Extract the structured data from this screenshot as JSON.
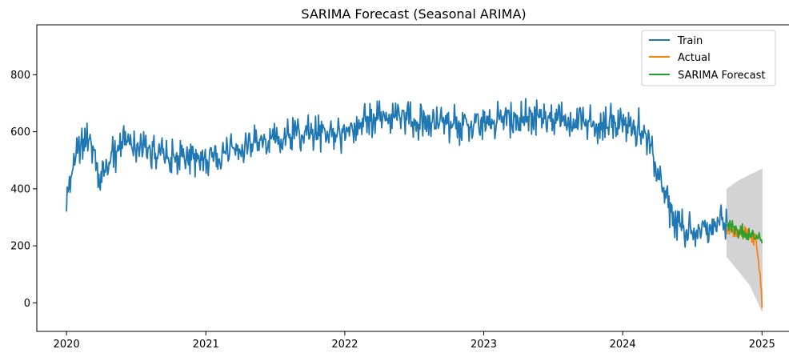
{
  "chart_data": {
    "type": "line",
    "title": "SARIMA Forecast (Seasonal ARIMA)",
    "xlabel": "",
    "ylabel": "",
    "xlim": [
      "2019-10-15",
      "2025-03-15"
    ],
    "ylim": [
      -100,
      975
    ],
    "x_ticks": [
      "2020",
      "2021",
      "2022",
      "2023",
      "2024",
      "2025"
    ],
    "y_ticks": [
      0,
      200,
      400,
      600,
      800
    ],
    "grid": false,
    "legend": {
      "placement": "upper right",
      "entries": [
        "Train",
        "Actual",
        "SARIMA Forecast"
      ]
    },
    "series": [
      {
        "name": "Train",
        "color": "#1f77b4",
        "x": [
          "2020-01-01",
          "2020-02-01",
          "2020-03-01",
          "2020-04-01",
          "2020-05-01",
          "2020-06-01",
          "2020-07-01",
          "2020-08-01",
          "2020-09-01",
          "2020-10-01",
          "2020-11-01",
          "2020-12-01",
          "2021-01-01",
          "2021-02-01",
          "2021-03-01",
          "2021-04-01",
          "2021-05-01",
          "2021-06-01",
          "2021-07-01",
          "2021-08-01",
          "2021-09-01",
          "2021-10-01",
          "2021-11-01",
          "2021-12-01",
          "2022-01-01",
          "2022-02-01",
          "2022-03-01",
          "2022-04-01",
          "2022-05-01",
          "2022-06-01",
          "2022-07-01",
          "2022-08-01",
          "2022-09-01",
          "2022-10-01",
          "2022-11-01",
          "2022-12-01",
          "2023-01-01",
          "2023-02-01",
          "2023-03-01",
          "2023-04-01",
          "2023-05-01",
          "2023-06-01",
          "2023-07-01",
          "2023-08-01",
          "2023-09-01",
          "2023-10-01",
          "2023-11-01",
          "2023-12-01",
          "2024-01-01",
          "2024-02-01",
          "2024-03-01",
          "2024-04-01",
          "2024-05-01",
          "2024-06-01",
          "2024-07-01",
          "2024-08-01",
          "2024-09-01",
          "2024-10-01"
        ],
        "y": [
          360,
          560,
          580,
          420,
          520,
          560,
          545,
          540,
          520,
          510,
          515,
          500,
          505,
          520,
          540,
          545,
          555,
          565,
          570,
          580,
          585,
          590,
          600,
          605,
          590,
          610,
          640,
          660,
          650,
          655,
          640,
          630,
          635,
          630,
          625,
          620,
          625,
          630,
          640,
          650,
          655,
          650,
          645,
          650,
          640,
          635,
          630,
          640,
          620,
          615,
          600,
          480,
          330,
          270,
          265,
          265,
          270,
          275
        ]
      },
      {
        "name": "Actual",
        "color": "#ff7f0e",
        "x": [
          "2024-10-01",
          "2024-10-15",
          "2024-11-01",
          "2024-11-15",
          "2024-12-01",
          "2024-12-15",
          "2024-12-25",
          "2025-01-01"
        ],
        "y": [
          270,
          250,
          255,
          245,
          240,
          230,
          110,
          10
        ]
      },
      {
        "name": "SARIMA Forecast",
        "color": "#2ca02c",
        "x": [
          "2024-10-01",
          "2024-10-15",
          "2024-11-01",
          "2024-11-15",
          "2024-12-01",
          "2024-12-15",
          "2025-01-01"
        ],
        "y": [
          270,
          262,
          254,
          246,
          238,
          230,
          222
        ]
      }
    ],
    "confidence_band": {
      "color": "#d3d3d3",
      "x": [
        "2024-10-01",
        "2024-11-01",
        "2024-12-01",
        "2025-01-01"
      ],
      "lower": [
        160,
        110,
        60,
        -30
      ],
      "upper": [
        400,
        430,
        450,
        470
      ]
    }
  }
}
